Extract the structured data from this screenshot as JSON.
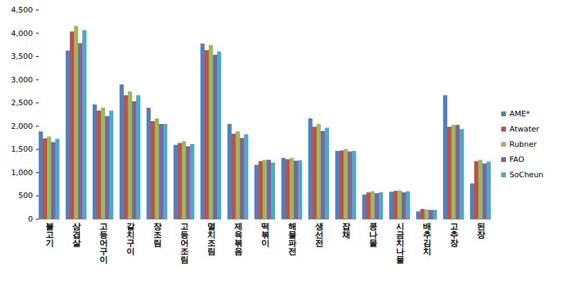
{
  "chart_data": {
    "type": "bar",
    "categories": [
      "불고기",
      "삼겹살",
      "고등어구이",
      "갈치구이",
      "장조림",
      "고등어조림",
      "멸치조림",
      "제육볶음",
      "떡볶이",
      "해물파전",
      "생선전",
      "잡채",
      "콩나물",
      "시금치나물",
      "배추김치",
      "고추장",
      "된장"
    ],
    "series": [
      {
        "name": "AME*",
        "color": "#4f81bd",
        "values": [
          1880,
          3620,
          2460,
          2890,
          2390,
          1590,
          3770,
          2040,
          1160,
          1310,
          2160,
          1460,
          520,
          580,
          160,
          2660,
          760
        ]
      },
      {
        "name": "Atwater",
        "color": "#c0504d",
        "values": [
          1730,
          4030,
          2330,
          2660,
          2100,
          1630,
          3630,
          1830,
          1240,
          1280,
          1980,
          1470,
          570,
          600,
          210,
          1980,
          1240
        ]
      },
      {
        "name": "Rubner",
        "color": "#9bbb59",
        "values": [
          1770,
          4150,
          2390,
          2740,
          2160,
          1670,
          3740,
          1880,
          1270,
          1310,
          2040,
          1500,
          590,
          610,
          200,
          2020,
          1270
        ]
      },
      {
        "name": "FAO",
        "color": "#8064a2",
        "values": [
          1650,
          3780,
          2210,
          2530,
          2040,
          1560,
          3530,
          1740,
          1270,
          1250,
          1890,
          1450,
          550,
          570,
          190,
          2020,
          1190
        ]
      },
      {
        "name": "SoCheun",
        "color": "#4bacc6",
        "values": [
          1720,
          4060,
          2330,
          2660,
          2040,
          1610,
          3600,
          1820,
          1210,
          1260,
          1960,
          1460,
          570,
          590,
          190,
          1930,
          1230
        ]
      }
    ],
    "ylim": [
      0,
      4500
    ],
    "yticks": [
      0,
      500,
      1000,
      1500,
      2000,
      2500,
      3000,
      3500,
      4000,
      4500
    ],
    "grid": false,
    "legend": "right"
  }
}
